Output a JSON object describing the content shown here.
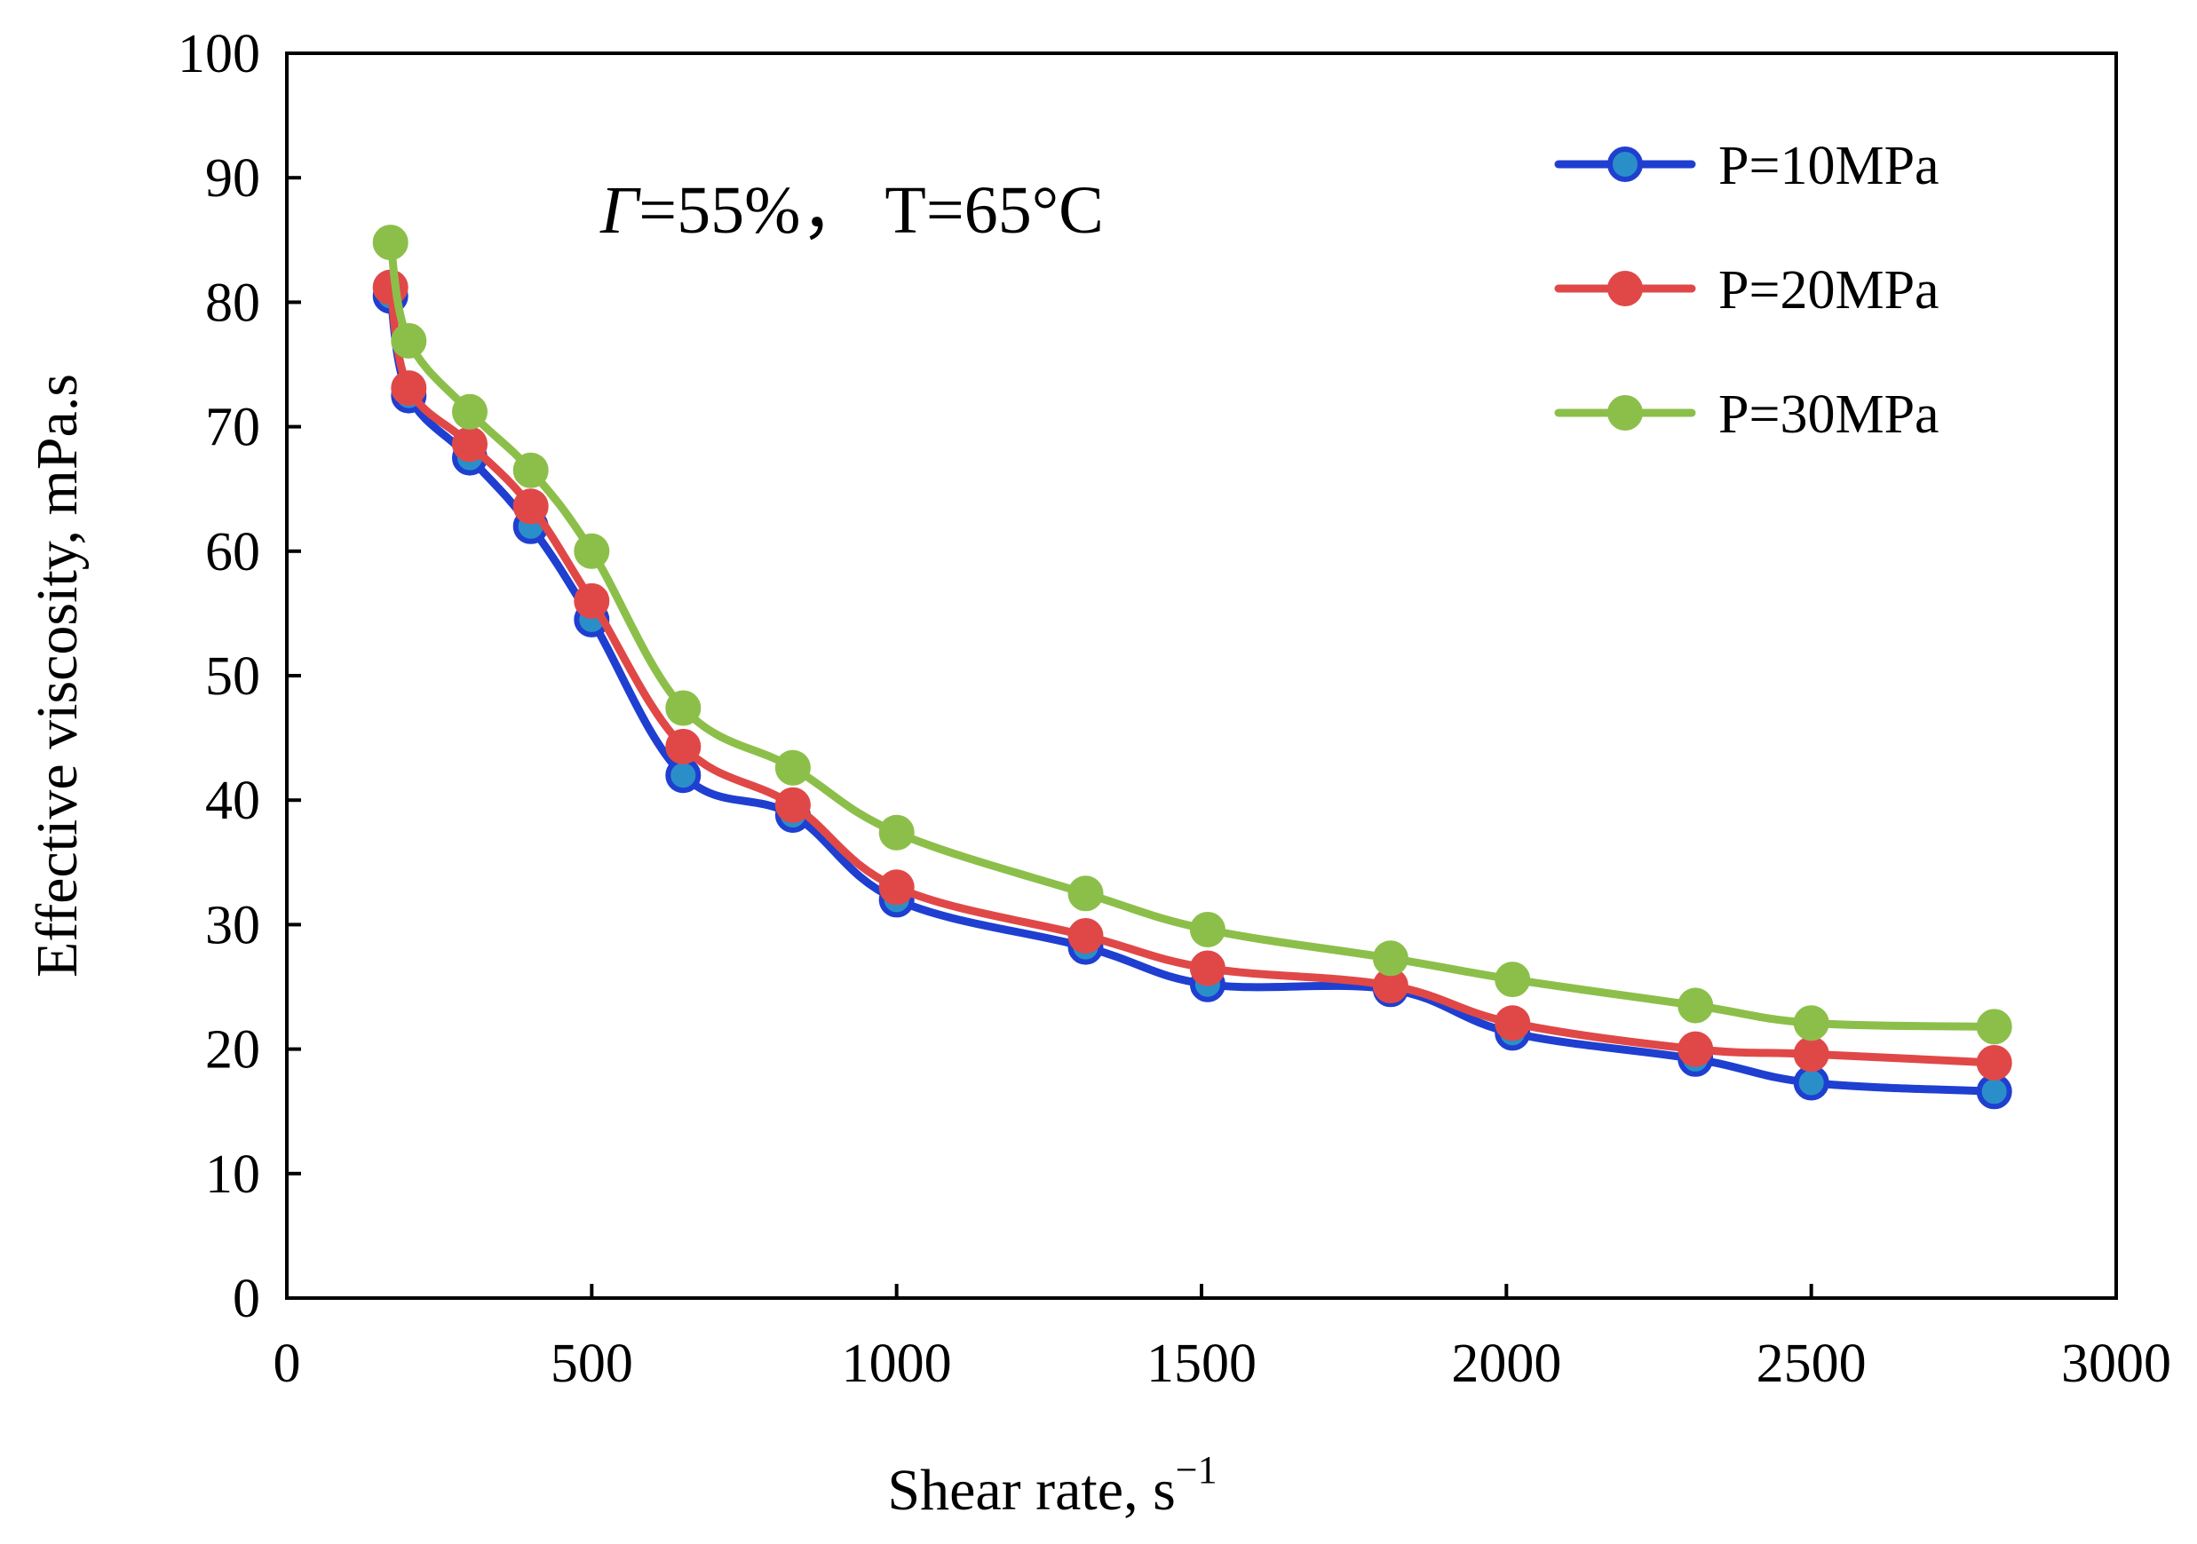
{
  "chart_data": {
    "type": "line",
    "title": "",
    "annotation": {
      "symbol": "Γ",
      "text": "=55%，  T=65°C"
    },
    "xlabel": {
      "text": "Shear rate, s",
      "superscript": "−1"
    },
    "ylabel": "Effective viscosity,  mPa.s",
    "xlim": [
      0,
      3000
    ],
    "ylim": [
      0,
      100
    ],
    "xticks": [
      0,
      500,
      1000,
      1500,
      2000,
      2500,
      3000
    ],
    "yticks": [
      0,
      10,
      20,
      30,
      40,
      50,
      60,
      70,
      80,
      90,
      100
    ],
    "xtick_labels": [
      "0",
      "500",
      "1000",
      "1500",
      "2000",
      "2500",
      "3000"
    ],
    "ytick_labels": [
      "0",
      "10",
      "20",
      "30",
      "40",
      "50",
      "60",
      "70",
      "80",
      "90",
      "100"
    ],
    "grid": false,
    "legend_position": "top-right",
    "series": [
      {
        "name": "P=10MPa",
        "line_color": "#1f3fd1",
        "marker_color": "#2a8fc9",
        "x": [
          170,
          200,
          300,
          400,
          500,
          650,
          830,
          1000,
          1310,
          1510,
          1810,
          2010,
          2310,
          2500,
          2800
        ],
        "y": [
          80.5,
          72.5,
          67.5,
          62.0,
          54.5,
          42.0,
          38.8,
          32.0,
          28.2,
          25.2,
          24.8,
          21.3,
          19.2,
          17.3,
          16.6
        ]
      },
      {
        "name": "P=20MPa",
        "line_color": "#e04848",
        "marker_color": "#e04848",
        "x": [
          170,
          200,
          300,
          400,
          500,
          650,
          830,
          1000,
          1310,
          1510,
          1810,
          2010,
          2310,
          2500,
          2800
        ],
        "y": [
          81.2,
          73.1,
          68.6,
          63.6,
          56.0,
          44.3,
          39.6,
          33.0,
          29.1,
          26.5,
          25.1,
          22.1,
          20.0,
          19.6,
          18.9
        ]
      },
      {
        "name": "P=30MPa",
        "line_color": "#8cbf4a",
        "marker_color": "#8cbf4a",
        "x": [
          170,
          200,
          300,
          400,
          500,
          650,
          830,
          1000,
          1310,
          1510,
          1810,
          2010,
          2310,
          2500,
          2800
        ],
        "y": [
          84.8,
          76.9,
          71.2,
          66.5,
          60.0,
          47.4,
          42.6,
          37.4,
          32.5,
          29.6,
          27.3,
          25.6,
          23.5,
          22.1,
          21.8
        ]
      }
    ]
  }
}
